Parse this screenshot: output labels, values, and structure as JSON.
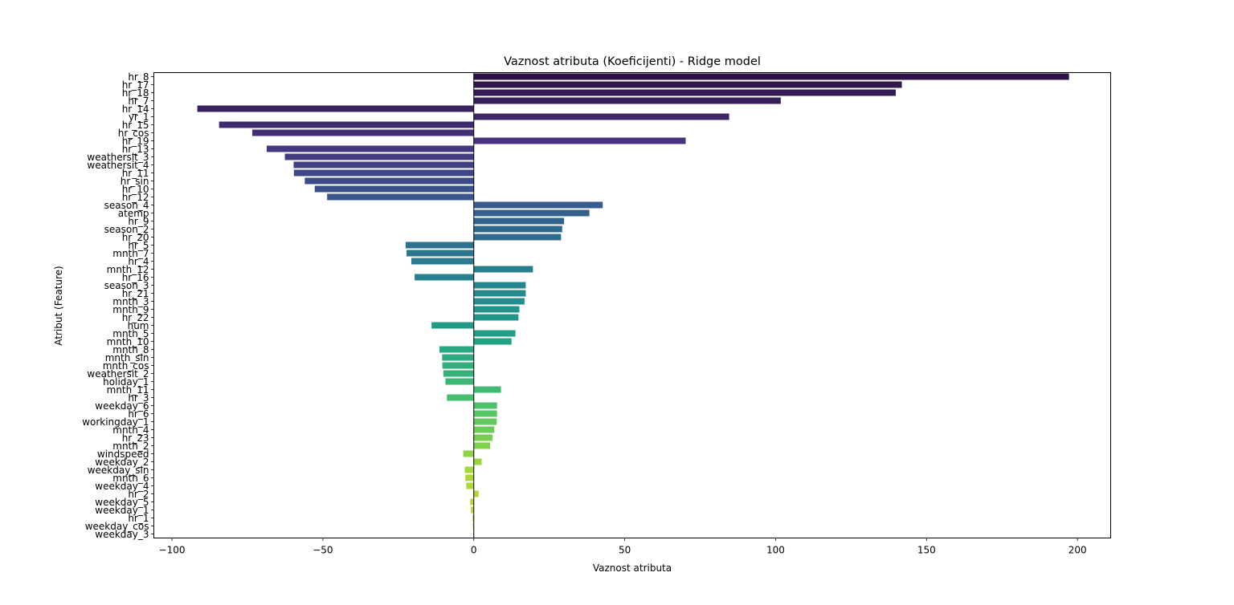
{
  "chart_data": {
    "type": "bar",
    "orientation": "horizontal",
    "title": "Vaznost atributa (Koeficijenti) - Ridge model",
    "xlabel": "Vaznost atributa",
    "ylabel": "Atribut (Feature)",
    "xlim": [
      -106,
      211
    ],
    "xticks": [
      -100,
      -50,
      0,
      50,
      100,
      150,
      200
    ],
    "xtick_labels": [
      "−100",
      "−50",
      "0",
      "50",
      "100",
      "150",
      "200"
    ],
    "grid": false,
    "colormap": "viridis",
    "color_start": "#2e1245",
    "color_end": "#cfd436",
    "categories": [
      "hr_8",
      "hr_17",
      "hr_18",
      "hr_7",
      "hr_14",
      "yr_1",
      "hr_15",
      "hr_cos",
      "hr_19",
      "hr_13",
      "weathersit_3",
      "weathersit_4",
      "hr_11",
      "hr_sin",
      "hr_10",
      "hr_12",
      "season_4",
      "atemp",
      "hr_9",
      "season_2",
      "hr_20",
      "hr_5",
      "mnth_7",
      "hr_4",
      "mnth_12",
      "hr_16",
      "season_3",
      "hr_21",
      "mnth_3",
      "mnth_9",
      "hr_22",
      "hum",
      "mnth_5",
      "mnth_10",
      "mnth_8",
      "mnth_sin",
      "mnth_cos",
      "weathersit_2",
      "holiday_1",
      "mnth_11",
      "hr_3",
      "weekday_6",
      "hr_6",
      "workingday_1",
      "mnth_4",
      "hr_23",
      "mnth_2",
      "windspeed",
      "weekday_2",
      "weekday_sin",
      "mnth_6",
      "weekday_4",
      "hr_2",
      "weekday_5",
      "weekday_1",
      "hr_1",
      "weekday_cos",
      "weekday_3"
    ],
    "values": [
      197.2,
      141.8,
      139.8,
      101.7,
      -91.6,
      84.6,
      -84.4,
      -73.4,
      70.2,
      -68.6,
      -62.6,
      -59.7,
      -59.6,
      -56.0,
      -52.7,
      -48.6,
      42.7,
      38.3,
      29.9,
      29.3,
      28.9,
      -22.6,
      -22.3,
      -20.7,
      19.6,
      -19.6,
      17.2,
      17.2,
      16.8,
      15.1,
      14.8,
      -14.0,
      13.8,
      12.5,
      -11.4,
      -10.5,
      -10.4,
      -10.1,
      -9.4,
      9.0,
      -8.9,
      7.7,
      7.7,
      7.6,
      6.8,
      6.2,
      5.4,
      -3.5,
      2.6,
      -3.0,
      -2.8,
      -2.5,
      1.6,
      -1.2,
      -1.0,
      -0.4,
      -0.3,
      -0.2
    ]
  }
}
